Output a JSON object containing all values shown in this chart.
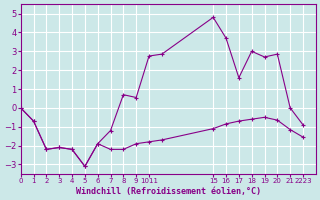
{
  "xlabel": "Windchill (Refroidissement éolien,°C)",
  "background_color": "#cce8e8",
  "grid_color": "#ffffff",
  "line_color": "#880088",
  "xlim": [
    0,
    23
  ],
  "ylim": [
    -3.5,
    5.5
  ],
  "yticks": [
    -3,
    -2,
    -1,
    0,
    1,
    2,
    3,
    4,
    5
  ],
  "xtick_positions": [
    0,
    1,
    2,
    3,
    4,
    5,
    6,
    7,
    8,
    9,
    10,
    15,
    16,
    17,
    18,
    19,
    20,
    21,
    22
  ],
  "xtick_labels": [
    "0",
    "1",
    "2",
    "3",
    "4",
    "5",
    "6",
    "7",
    "8",
    "9",
    "1011",
    "15",
    "16",
    "17",
    "18",
    "19",
    "20",
    "21",
    "2223"
  ],
  "lines": [
    {
      "x": [
        0,
        1,
        2,
        3,
        4,
        5,
        6,
        7,
        8,
        9,
        10,
        11,
        15,
        16,
        17,
        18,
        19,
        20,
        21,
        22
      ],
      "y": [
        0,
        -0.7,
        -2.2,
        -2.1,
        -2.2,
        -3.1,
        -1.9,
        -1.2,
        0.7,
        0.55,
        2.75,
        2.85,
        4.8,
        3.7,
        1.6,
        3.0,
        2.7,
        2.85,
        0.0,
        -0.9
      ]
    },
    {
      "x": [
        0,
        1,
        2,
        3,
        4,
        5,
        6,
        7,
        8,
        9,
        10,
        11,
        15,
        16,
        17,
        18,
        19,
        20,
        21,
        22
      ],
      "y": [
        0,
        -0.7,
        -2.2,
        -2.1,
        -2.2,
        -3.1,
        -1.9,
        -2.2,
        -2.2,
        -1.9,
        -1.8,
        -1.7,
        -1.1,
        -0.85,
        -0.7,
        -0.6,
        -0.5,
        -0.65,
        -1.15,
        -1.55
      ]
    }
  ]
}
